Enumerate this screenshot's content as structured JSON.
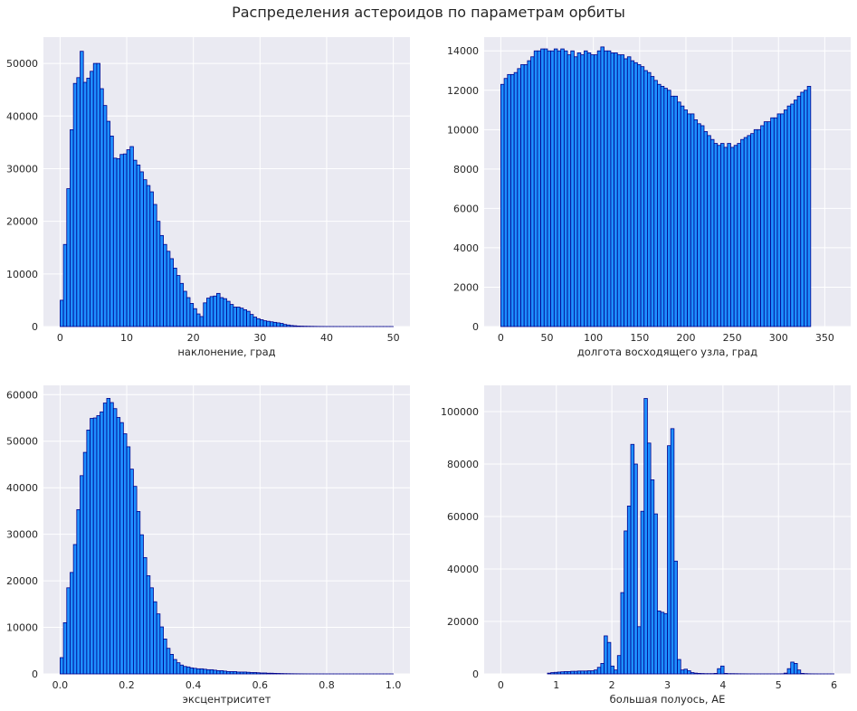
{
  "title": "Распределения астероидов по параметрам орбиты",
  "colors": {
    "bar_fill": "#1e90ff",
    "bar_edge": "#00008b",
    "axes_bg": "#eaeaf2",
    "grid": "#ffffff"
  },
  "chart_data": [
    {
      "type": "bar",
      "xlabel": "наклонение, град",
      "xlim": [
        -2.5,
        52.5
      ],
      "ylim": [
        0,
        55000
      ],
      "xticks": [
        0,
        10,
        20,
        30,
        40,
        50
      ],
      "yticks": [
        0,
        10000,
        20000,
        30000,
        40000,
        50000
      ],
      "bin_start": 0,
      "bin_width": 0.5,
      "values": [
        5000,
        15600,
        26200,
        37400,
        46200,
        47300,
        52300,
        46400,
        47200,
        48500,
        50000,
        50000,
        45200,
        42000,
        39000,
        36200,
        32000,
        31900,
        32700,
        32800,
        33600,
        34200,
        31600,
        30700,
        29400,
        27900,
        26800,
        25600,
        23200,
        20000,
        17300,
        15600,
        14300,
        12900,
        11100,
        9700,
        8200,
        6700,
        5500,
        4400,
        3400,
        2400,
        1900,
        4500,
        5400,
        5700,
        5800,
        6300,
        5500,
        5300,
        4800,
        4200,
        3700,
        3700,
        3500,
        3200,
        2900,
        2300,
        1800,
        1500,
        1300,
        1100,
        1000,
        900,
        800,
        700,
        600,
        400,
        300,
        200,
        150,
        100,
        80,
        60,
        50,
        40,
        30,
        20,
        15,
        10,
        8,
        6,
        5,
        4,
        3,
        2,
        2,
        1,
        1,
        1,
        1,
        1,
        1,
        1,
        1,
        1,
        1,
        1,
        1,
        1
      ],
      "grid": true,
      "legend": "none"
    },
    {
      "type": "bar",
      "xlabel": "долгота восходящего узла, град",
      "xlim": [
        -18,
        378
      ],
      "ylim": [
        0,
        14700
      ],
      "xticks": [
        0,
        50,
        100,
        150,
        200,
        250,
        300,
        350
      ],
      "yticks": [
        0,
        2000,
        4000,
        6000,
        8000,
        10000,
        12000,
        14000
      ],
      "bin_start": 0,
      "bin_width": 3.6,
      "values": [
        12300,
        12600,
        12800,
        12800,
        12900,
        13100,
        13300,
        13300,
        13500,
        13700,
        14000,
        14000,
        14100,
        14100,
        14000,
        14000,
        14100,
        14000,
        14100,
        14000,
        13800,
        14000,
        13700,
        13900,
        13800,
        14000,
        13900,
        13800,
        13800,
        14000,
        14200,
        14000,
        14000,
        13900,
        13900,
        13800,
        13800,
        13600,
        13700,
        13500,
        13400,
        13300,
        13200,
        13000,
        12900,
        12700,
        12500,
        12300,
        12200,
        12100,
        12000,
        11700,
        11700,
        11400,
        11200,
        11000,
        10800,
        10800,
        10500,
        10300,
        10200,
        9900,
        9700,
        9500,
        9300,
        9200,
        9300,
        9100,
        9300,
        9100,
        9200,
        9300,
        9500,
        9600,
        9700,
        9800,
        10000,
        10000,
        10200,
        10400,
        10400,
        10600,
        10600,
        10800,
        10800,
        11000,
        11200,
        11300,
        11500,
        11700,
        11900,
        12000,
        12200
      ],
      "grid": true,
      "legend": "none"
    },
    {
      "type": "bar",
      "xlabel": "эксцентриситет",
      "xlim": [
        -0.05,
        1.05
      ],
      "ylim": [
        0,
        62000
      ],
      "xticks": [
        0.0,
        0.2,
        0.4,
        0.6,
        0.8,
        1.0
      ],
      "ytick_labels_note": "integers",
      "yticks": [
        0,
        10000,
        20000,
        30000,
        40000,
        50000,
        60000
      ],
      "bin_start": 0,
      "bin_width": 0.01,
      "values": [
        3500,
        11000,
        18500,
        21800,
        27800,
        35300,
        42600,
        47600,
        52400,
        54900,
        55000,
        55500,
        56300,
        58200,
        59200,
        58300,
        57000,
        55100,
        54000,
        51600,
        48800,
        44000,
        40300,
        34900,
        29900,
        25000,
        21100,
        18500,
        15500,
        12900,
        10100,
        7500,
        5500,
        4200,
        3100,
        2400,
        1900,
        1600,
        1500,
        1300,
        1200,
        1100,
        1100,
        1000,
        900,
        900,
        800,
        700,
        700,
        600,
        500,
        500,
        500,
        400,
        400,
        400,
        350,
        300,
        300,
        250,
        200,
        200,
        150,
        150,
        120,
        100,
        80,
        60,
        50,
        40,
        30,
        25,
        20,
        15,
        10,
        8,
        6,
        5,
        4,
        3,
        2,
        2,
        1,
        1,
        1,
        1,
        1,
        1,
        1,
        1,
        1,
        1,
        1,
        1,
        1,
        1,
        1,
        1,
        1,
        1
      ],
      "grid": true,
      "legend": "none"
    },
    {
      "type": "bar",
      "xlabel": "большая полуось, АЕ",
      "xlim": [
        -0.3,
        6.3
      ],
      "ylim": [
        0,
        110000
      ],
      "xticks": [
        0,
        1,
        2,
        3,
        4,
        5,
        6
      ],
      "yticks": [
        0,
        20000,
        40000,
        60000,
        80000,
        100000
      ],
      "bin_start": 0,
      "bin_width": 0.06,
      "values": [
        0,
        0,
        0,
        0,
        0,
        0,
        0,
        0,
        0,
        0,
        0,
        0,
        0,
        0,
        300,
        500,
        600,
        700,
        800,
        900,
        900,
        1000,
        1000,
        1100,
        1100,
        1100,
        1200,
        1200,
        1500,
        2500,
        4000,
        14500,
        12000,
        3000,
        1500,
        7000,
        31000,
        54500,
        64000,
        87500,
        80000,
        18000,
        62000,
        105000,
        88000,
        74000,
        61000,
        24000,
        23500,
        23000,
        87000,
        93500,
        43000,
        5500,
        1500,
        1800,
        1200,
        500,
        300,
        200,
        150,
        100,
        100,
        100,
        200,
        2000,
        3000,
        200,
        100,
        100,
        80,
        60,
        50,
        40,
        30,
        30,
        20,
        20,
        20,
        20,
        20,
        20,
        20,
        30,
        50,
        300,
        2000,
        4500,
        4000,
        1500,
        200,
        100,
        50,
        30,
        20,
        10,
        10,
        10,
        10,
        10,
        0
      ]
    }
  ]
}
